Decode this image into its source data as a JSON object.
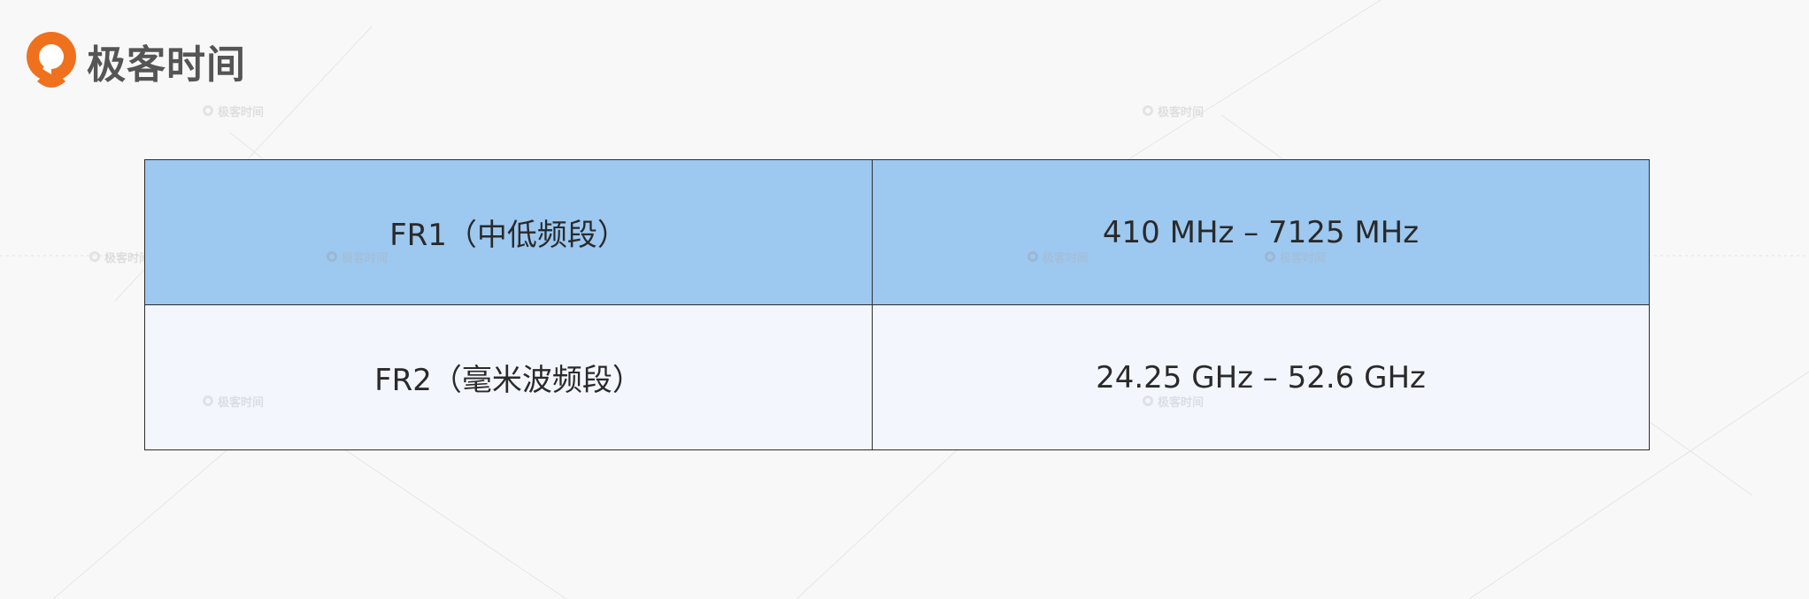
{
  "brand": {
    "name": "极客时间",
    "logo_color": "#f0711d"
  },
  "watermark": {
    "text": "极客时间"
  },
  "table": {
    "rows": [
      {
        "band": "FR1（中低频段）",
        "range": "410 MHz – 7125 MHz"
      },
      {
        "band": "FR2（毫米波频段）",
        "range": "24.25 GHz – 52.6 GHz"
      }
    ],
    "header_bg": "#9dc8f0",
    "body_bg": "#f4f6fe"
  }
}
